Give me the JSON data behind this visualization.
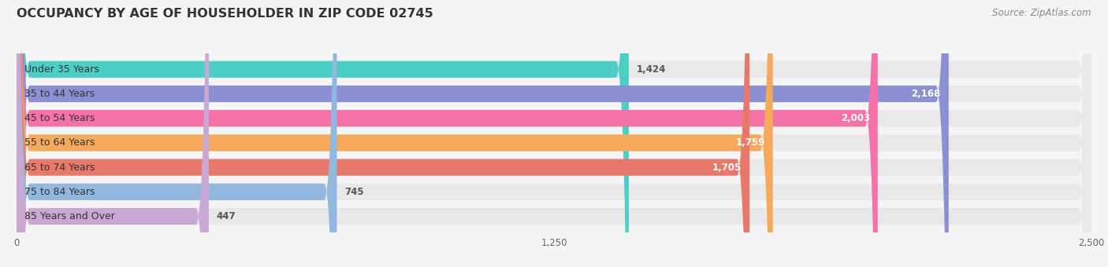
{
  "title": "OCCUPANCY BY AGE OF HOUSEHOLDER IN ZIP CODE 02745",
  "source": "Source: ZipAtlas.com",
  "categories": [
    "Under 35 Years",
    "35 to 44 Years",
    "45 to 54 Years",
    "55 to 64 Years",
    "65 to 74 Years",
    "75 to 84 Years",
    "85 Years and Over"
  ],
  "values": [
    1424,
    2168,
    2003,
    1759,
    1705,
    745,
    447
  ],
  "bar_colors": [
    "#4ECFC6",
    "#8B8FD4",
    "#F472A8",
    "#F5A95A",
    "#E8796A",
    "#92B8E0",
    "#C9A8D4"
  ],
  "bar_bg_color": "#E8E8E8",
  "xlim": [
    0,
    2500
  ],
  "xticks": [
    0,
    1250,
    2500
  ],
  "title_fontsize": 11.5,
  "source_fontsize": 8.5,
  "label_fontsize": 9,
  "value_fontsize": 8.5,
  "background_color": "#F5F5F5",
  "plot_bg_color": "#F5F5F5",
  "value_threshold": 1500
}
